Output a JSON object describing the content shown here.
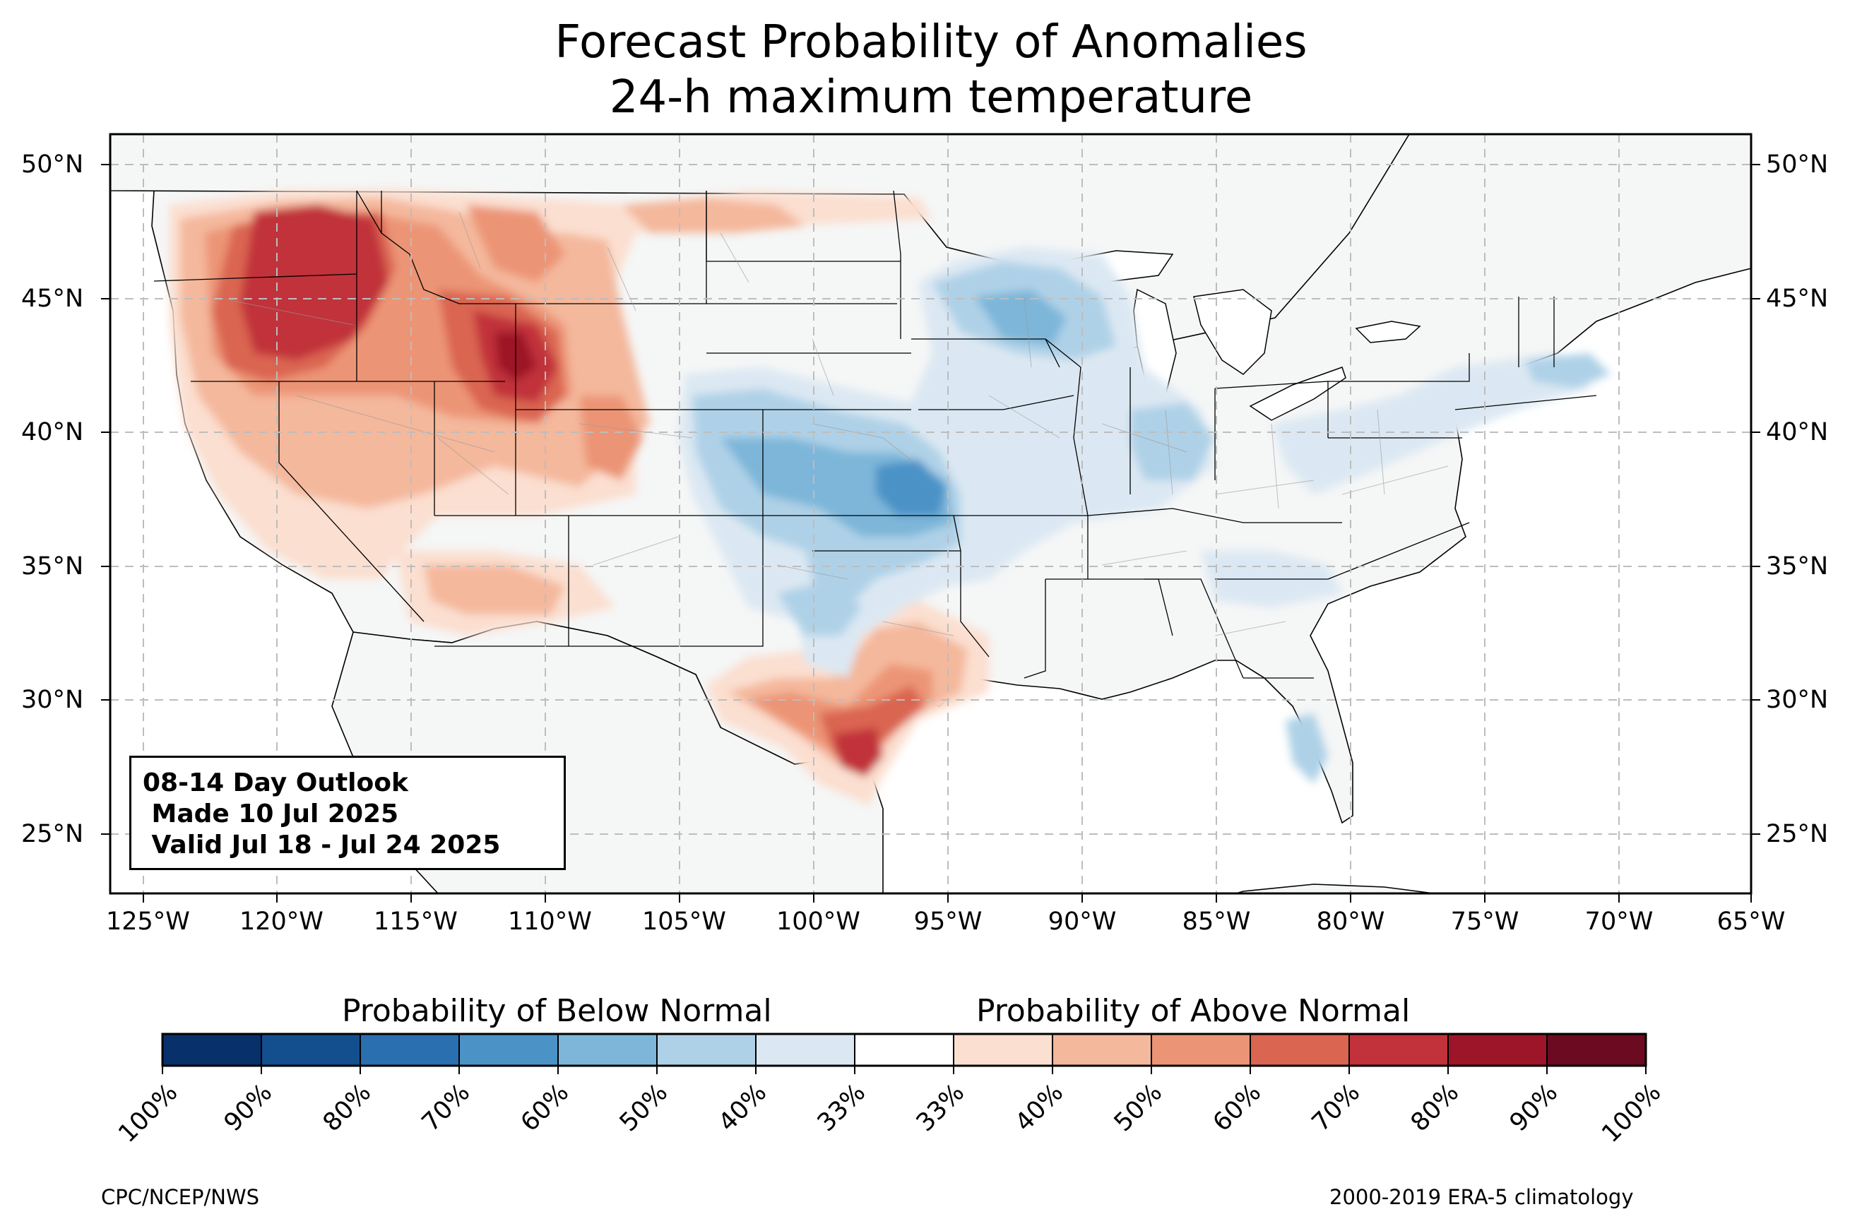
{
  "title_line1": "Forecast Probability of Anomalies",
  "title_line2": "24-h maximum temperature",
  "latitude_labels": [
    "50°N",
    "45°N",
    "40°N",
    "35°N",
    "30°N",
    "25°N"
  ],
  "longitude_labels": [
    "125°W",
    "120°W",
    "115°W",
    "110°W",
    "105°W",
    "100°W",
    "95°W",
    "90°W",
    "85°W",
    "80°W",
    "75°W",
    "70°W",
    "65°W"
  ],
  "outlook_box": {
    "line1": "08-14 Day Outlook",
    "line2": " Made 10 Jul 2025",
    "line3": " Valid Jul 18 - Jul 24 2025"
  },
  "colorbar": {
    "below_label": "Probability of Below Normal",
    "above_label": "Probability of Above Normal",
    "colors": [
      "#08306b",
      "#134f8e",
      "#2a6fb0",
      "#4b93c7",
      "#7db6d9",
      "#afd1e7",
      "#dbe8f3",
      "#ffffff",
      "#fbdfd0",
      "#f4b89c",
      "#ec9476",
      "#da6551",
      "#c1323a",
      "#9d1528",
      "#6b0a20"
    ],
    "ticks": [
      "100%",
      "90%",
      "80%",
      "70%",
      "60%",
      "50%",
      "40%",
      "33%",
      "33%",
      "40%",
      "50%",
      "60%",
      "70%",
      "80%",
      "90%",
      "100%"
    ]
  },
  "footer_left": "CPC/NCEP/NWS",
  "footer_right": "2000-2019 ERA-5 climatology"
}
